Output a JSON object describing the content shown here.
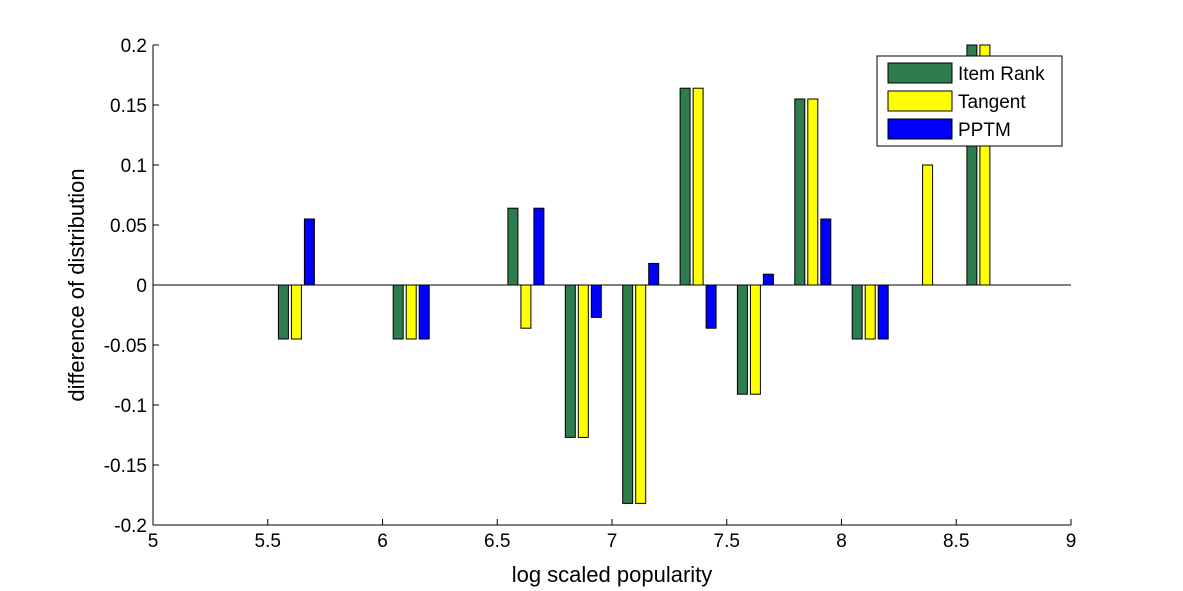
{
  "chart_data": {
    "type": "bar",
    "title": "",
    "xlabel": "log scaled popularity",
    "ylabel": "difference of distribution",
    "xlim": [
      5,
      9
    ],
    "ylim": [
      -0.2,
      0.2
    ],
    "xticks": [
      "5",
      "5.5",
      "6",
      "6.5",
      "7",
      "7.5",
      "8",
      "8.5",
      "9"
    ],
    "yticks": [
      "-0.2",
      "-0.15",
      "-0.1",
      "-0.05",
      "0",
      "0.05",
      "0.1",
      "0.15",
      "0.2"
    ],
    "x": [
      5.625,
      6.125,
      6.625,
      6.875,
      7.125,
      7.375,
      7.625,
      7.875,
      8.125,
      8.375,
      8.625
    ],
    "series": [
      {
        "name": "Item Rank",
        "color": "#2e7d4f",
        "values": [
          -0.045,
          -0.045,
          0.064,
          -0.127,
          -0.182,
          0.164,
          -0.091,
          0.155,
          -0.045,
          0.0,
          0.2
        ]
      },
      {
        "name": "Tangent",
        "color": "#ffff00",
        "values": [
          -0.045,
          -0.045,
          -0.036,
          -0.127,
          -0.182,
          0.164,
          -0.091,
          0.155,
          -0.045,
          0.1,
          0.2
        ]
      },
      {
        "name": "PPTM",
        "color": "#0000ff",
        "values": [
          0.055,
          -0.045,
          0.064,
          -0.027,
          0.018,
          -0.036,
          0.009,
          0.055,
          -0.045,
          0.0,
          0.0
        ]
      }
    ],
    "legend": {
      "position": "top-right"
    },
    "grid": false
  }
}
